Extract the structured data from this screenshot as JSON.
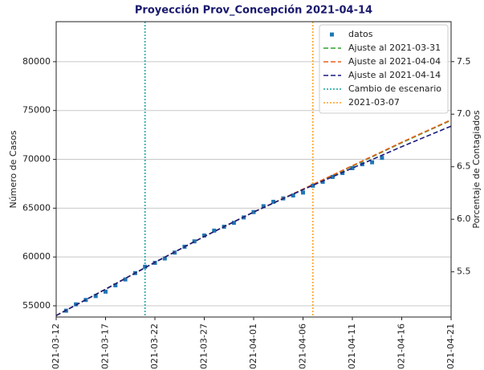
{
  "chart_data": {
    "type": "scatter",
    "title": "Proyección Prov_Concepción 2021-04-14",
    "ylabel": "Número de Casos",
    "y2label": "Porcentaje de Contagiados",
    "xlim": [
      "2021-03-12",
      "2021-04-21"
    ],
    "xticks": [
      "2021-03-12",
      "2021-03-17",
      "2021-03-22",
      "2021-03-27",
      "2021-04-01",
      "2021-04-06",
      "2021-04-11",
      "2021-04-16",
      "2021-04-21"
    ],
    "ylim": [
      53850,
      84100
    ],
    "yticks": [
      55000,
      60000,
      65000,
      70000,
      75000,
      80000
    ],
    "y2lim": [
      5.07,
      7.88
    ],
    "y2ticks": [
      5.5,
      {
        "value": 6.0,
        "label": "6.0"
      },
      6.5,
      {
        "value": 7.0,
        "label": "7.0"
      },
      7.5
    ],
    "grid": true,
    "legend": "upper right",
    "series": [
      {
        "name": "datos",
        "color": "#1f77b4",
        "style": "marker",
        "x": [
          "2021-03-13",
          "2021-03-14",
          "2021-03-15",
          "2021-03-16",
          "2021-03-17",
          "2021-03-18",
          "2021-03-19",
          "2021-03-20",
          "2021-03-21",
          "2021-03-22",
          "2021-03-23",
          "2021-03-24",
          "2021-03-25",
          "2021-03-26",
          "2021-03-27",
          "2021-03-28",
          "2021-03-29",
          "2021-03-30",
          "2021-03-31",
          "2021-04-01",
          "2021-04-02",
          "2021-04-03",
          "2021-04-04",
          "2021-04-05",
          "2021-04-06",
          "2021-04-07",
          "2021-04-08",
          "2021-04-09",
          "2021-04-10",
          "2021-04-11",
          "2021-04-12",
          "2021-04-13",
          "2021-04-14"
        ],
        "values": [
          54500,
          55150,
          55600,
          56000,
          56450,
          57100,
          57700,
          58350,
          59000,
          59400,
          59850,
          60450,
          61050,
          61600,
          62200,
          62700,
          63100,
          63500,
          64050,
          64600,
          65200,
          65650,
          66000,
          66300,
          66600,
          67300,
          67700,
          68200,
          68600,
          69100,
          69500,
          69700,
          70150
        ]
      },
      {
        "name": "Ajuste al 2021-03-31",
        "color": "#2ca02c",
        "style": "dashed",
        "x": [
          "2021-03-12",
          "2021-03-17",
          "2021-03-22",
          "2021-03-27",
          "2021-04-01",
          "2021-04-06",
          "2021-04-11",
          "2021-04-16",
          "2021-04-21"
        ],
        "values": [
          54000,
          56700,
          59450,
          62100,
          64600,
          66900,
          69300,
          71700,
          74000
        ]
      },
      {
        "name": "Ajuste al 2021-04-04",
        "color": "#e8601c",
        "style": "dashed",
        "x": [
          "2021-03-12",
          "2021-03-17",
          "2021-03-22",
          "2021-03-27",
          "2021-04-01",
          "2021-04-06",
          "2021-04-11",
          "2021-04-16",
          "2021-04-21"
        ],
        "values": [
          54000,
          56700,
          59450,
          62100,
          64600,
          66950,
          69350,
          71750,
          74050
        ]
      },
      {
        "name": "Ajuste al 2021-04-14",
        "color": "#1a1a80",
        "style": "dashed",
        "x": [
          "2021-03-12",
          "2021-03-17",
          "2021-03-22",
          "2021-03-27",
          "2021-04-01",
          "2021-04-06",
          "2021-04-11",
          "2021-04-16",
          "2021-04-21"
        ],
        "values": [
          54000,
          56700,
          59450,
          62100,
          64600,
          66900,
          69100,
          71300,
          73400
        ]
      }
    ],
    "vlines": [
      {
        "name": "Cambio de escenario",
        "color": "#17a2a2",
        "x": "2021-03-21"
      },
      {
        "name": "2021-03-07",
        "color": "#ff9f1c",
        "x": "2021-04-07"
      }
    ]
  }
}
